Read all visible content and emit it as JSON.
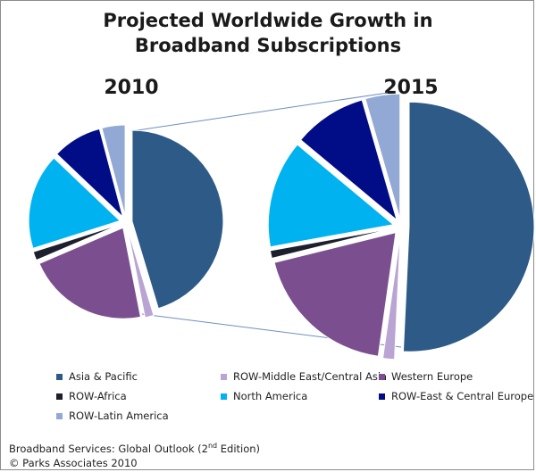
{
  "chart_data": [
    {
      "type": "pie",
      "title": "Projected  Worldwide Growth in Broadband Subscriptions",
      "label": "2010",
      "categories": [
        "Asia & Pacific",
        "ROW-Middle East/Central Asia",
        "Western Europe",
        "ROW-Africa",
        "North America",
        "ROW-East & Central Europe",
        "ROW-Latin America"
      ],
      "values": [
        44.0,
        1.5,
        21.0,
        1.5,
        16.5,
        8.5,
        4.0
      ],
      "legend": "bottom",
      "exploded": true
    },
    {
      "type": "pie",
      "title": "Projected  Worldwide Growth in Broadband Subscriptions",
      "label": "2015",
      "categories": [
        "Asia & Pacific",
        "ROW-Middle East/Central Asia",
        "Western Europe",
        "ROW-Africa",
        "North America",
        "ROW-East & Central Europe",
        "ROW-Latin America"
      ],
      "values": [
        51.0,
        1.5,
        19.0,
        1.0,
        14.0,
        9.5,
        4.5
      ],
      "legend": "bottom",
      "exploded": true
    }
  ],
  "colors": {
    "Asia & Pacific": "#2d5a86",
    "ROW-Middle East/Central Asia": "#b9a4d4",
    "Western Europe": "#7b4f8f",
    "ROW-Africa": "#1e1f2d",
    "North America": "#00b3f0",
    "ROW-East & Central Europe": "#000d86",
    "ROW-Latin America": "#93a9d5",
    "connector_line": "#6f8fbf"
  },
  "title": {
    "line1": "Projected  Worldwide Growth in",
    "line2": "Broadband Subscriptions"
  },
  "years": {
    "left": "2010",
    "right": "2015"
  },
  "legend": {
    "items": [
      "Asia & Pacific",
      "ROW-Middle East/Central Asia",
      "Western Europe",
      "ROW-Africa",
      "North America",
      "ROW-East & Central Europe",
      "ROW-Latin America"
    ]
  },
  "source": {
    "line1_prefix": "Broadband Services: Global Outlook (2",
    "line1_sup": "nd",
    "line1_suffix": " Edition)",
    "line2": "© Parks Associates 2010"
  }
}
